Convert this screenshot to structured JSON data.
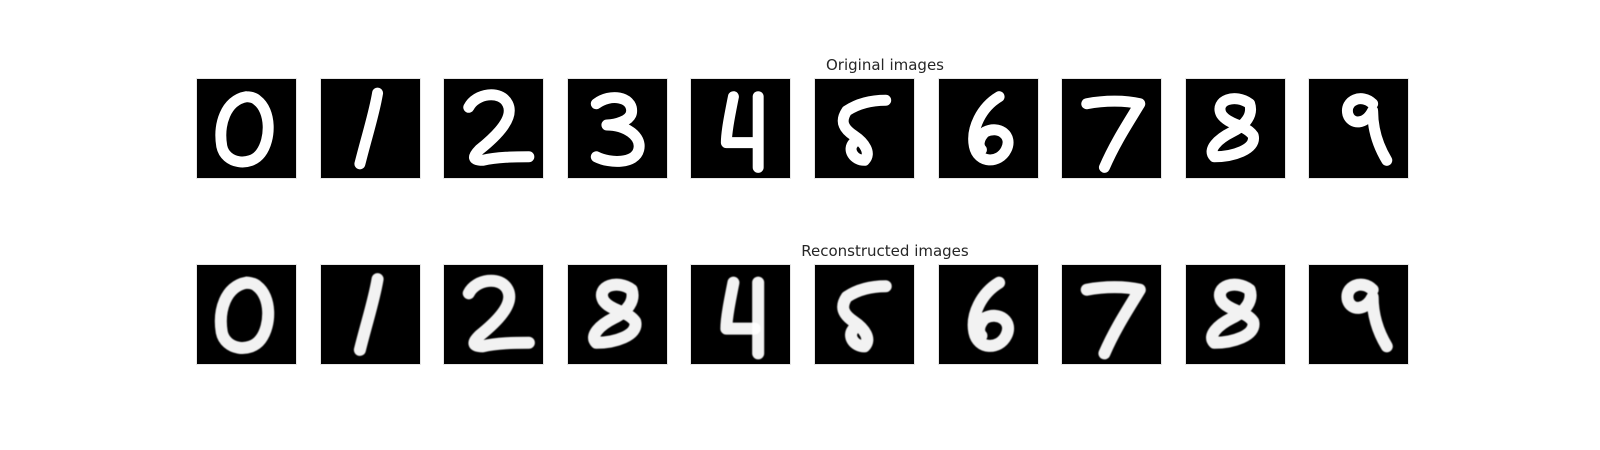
{
  "rows": [
    {
      "title": "Original images",
      "kind": "original",
      "images": [
        {
          "digit": "0"
        },
        {
          "digit": "1"
        },
        {
          "digit": "2"
        },
        {
          "digit": "3"
        },
        {
          "digit": "4"
        },
        {
          "digit": "5"
        },
        {
          "digit": "6"
        },
        {
          "digit": "7"
        },
        {
          "digit": "8"
        },
        {
          "digit": "9"
        }
      ]
    },
    {
      "title": "Reconstructed images",
      "kind": "reconstructed",
      "images": [
        {
          "digit": "0"
        },
        {
          "digit": "1"
        },
        {
          "digit": "2"
        },
        {
          "digit": "8"
        },
        {
          "digit": "4"
        },
        {
          "digit": "5"
        },
        {
          "digit": "6"
        },
        {
          "digit": "7"
        },
        {
          "digit": "8"
        },
        {
          "digit": "9"
        }
      ]
    }
  ]
}
